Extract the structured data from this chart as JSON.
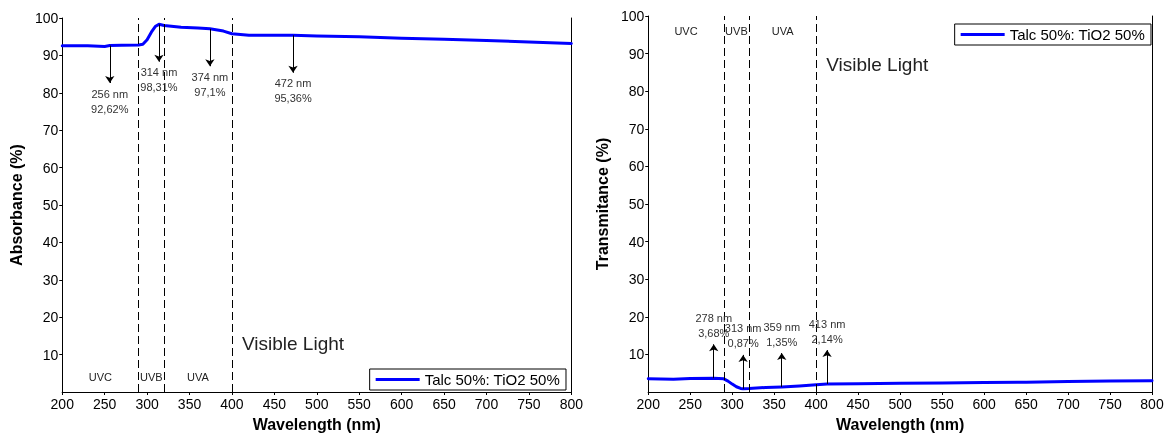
{
  "chart_data": [
    {
      "type": "line",
      "xlabel": "Wavelength (nm)",
      "ylabel": "Absorbance (%)",
      "x": [
        200,
        230,
        250,
        256,
        270,
        290,
        295,
        300,
        305,
        310,
        314,
        320,
        340,
        360,
        374,
        390,
        400,
        420,
        472,
        500,
        550,
        600,
        650,
        700,
        750,
        800
      ],
      "series": [
        {
          "name": "Talc 50%: TiO2 50%",
          "color": "#0000ff",
          "values": [
            92.6,
            92.6,
            92.4,
            92.62,
            92.7,
            92.8,
            93,
            94.2,
            96.2,
            97.8,
            98.31,
            98,
            97.5,
            97.3,
            97.1,
            96.5,
            95.8,
            95.4,
            95.36,
            95.2,
            95,
            94.6,
            94.3,
            94,
            93.6,
            93.2
          ]
        }
      ],
      "xlim": [
        200,
        800
      ],
      "xticks": [
        200,
        250,
        300,
        350,
        400,
        450,
        500,
        550,
        600,
        650,
        700,
        750,
        800
      ],
      "ylim": [
        0,
        100
      ],
      "yticks": [
        10,
        20,
        30,
        40,
        50,
        60,
        70,
        80,
        90,
        100
      ],
      "ref_lines": [
        {
          "axis": "x",
          "value": 290,
          "line_style": "dashed"
        },
        {
          "axis": "x",
          "value": 320,
          "line_style": "dashed"
        },
        {
          "axis": "x",
          "value": 400,
          "line_style": "dashed"
        }
      ],
      "annotations": [
        "UVC",
        "UVB",
        "UVA",
        "Visible Light",
        {
          "text": "256 nm\n92,62%",
          "x": 256,
          "y": 92.62
        },
        {
          "text": "314 nm\n98,31%",
          "x": 314,
          "y": 98.31
        },
        {
          "text": "374 nm\n97,1%",
          "x": 374,
          "y": 97.1
        },
        {
          "text": "472 nm\n95,36%",
          "x": 472,
          "y": 95.36
        }
      ],
      "legend": "bottom right",
      "grid": false,
      "marker": "none"
    },
    {
      "type": "line",
      "xlabel": "Wavelength (nm)",
      "ylabel": "Transmitance (%)",
      "x": [
        200,
        230,
        250,
        278,
        290,
        295,
        300,
        305,
        310,
        313,
        320,
        340,
        359,
        380,
        400,
        413,
        450,
        500,
        550,
        600,
        650,
        700,
        750,
        800
      ],
      "series": [
        {
          "name": "Talc 50%: TiO2 50%",
          "color": "#0000ff",
          "values": [
            3.5,
            3.4,
            3.6,
            3.68,
            3.5,
            2.9,
            2.1,
            1.4,
            0.95,
            0.87,
            0.9,
            1.2,
            1.35,
            1.6,
            1.9,
            2.14,
            2.2,
            2.3,
            2.4,
            2.5,
            2.6,
            2.8,
            2.9,
            3.0
          ]
        }
      ],
      "xlim": [
        200,
        800
      ],
      "xticks": [
        200,
        250,
        300,
        350,
        400,
        450,
        500,
        550,
        600,
        650,
        700,
        750,
        800
      ],
      "ylim": [
        0,
        100
      ],
      "yticks": [
        10,
        20,
        30,
        40,
        50,
        60,
        70,
        80,
        90,
        100
      ],
      "ref_lines": [
        {
          "axis": "x",
          "value": 290,
          "line_style": "dashed"
        },
        {
          "axis": "x",
          "value": 320,
          "line_style": "dashed"
        },
        {
          "axis": "x",
          "value": 400,
          "line_style": "dashed"
        }
      ],
      "annotations": [
        "UVC",
        "UVB",
        "UVA",
        "Visible Light",
        {
          "text": "278 nm\n3,68%",
          "x": 278,
          "y": 3.68
        },
        {
          "text": "313 nm\n0,87%",
          "x": 313,
          "y": 0.87
        },
        {
          "text": "359 nm\n1,35%",
          "x": 359,
          "y": 1.35
        },
        {
          "text": "413 nm\n2,14%",
          "x": 413,
          "y": 2.14
        }
      ],
      "legend": "top right",
      "grid": false,
      "marker": "none"
    }
  ]
}
